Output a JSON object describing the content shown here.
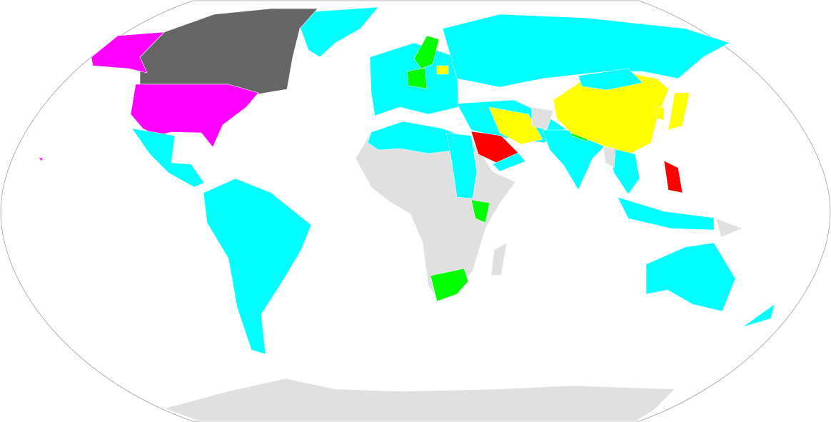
{
  "map": {
    "projection": "robinson",
    "background": "#ffffff",
    "frame_color": "#a0a0a0",
    "category_colors": {
      "cyan": "#00ffff",
      "magenta": "#ff00ff",
      "dark_gray": "#666666",
      "yellow": "#ffff00",
      "red": "#ff0000",
      "green": "#00ff00",
      "no_data": "#e0e0e0"
    }
  }
}
